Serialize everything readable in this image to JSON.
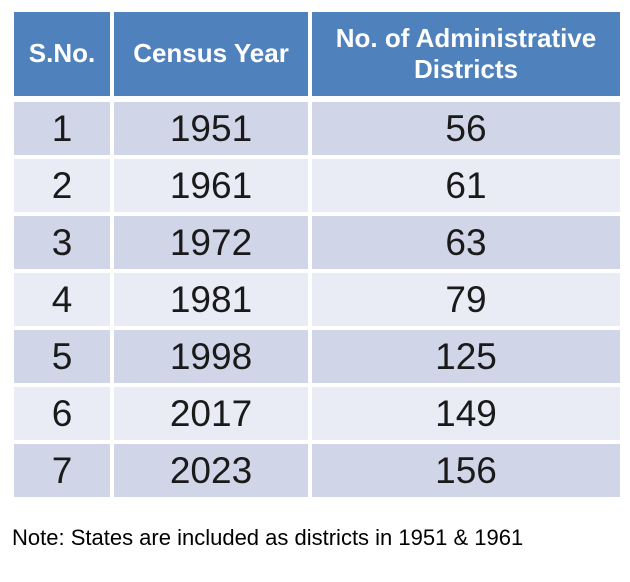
{
  "chart_data": {
    "type": "table",
    "columns": [
      "S.No.",
      "Census Year",
      "No. of Administrative Districts"
    ],
    "rows": [
      [
        "1",
        "1951",
        "56"
      ],
      [
        "2",
        "1961",
        "61"
      ],
      [
        "3",
        "1972",
        "63"
      ],
      [
        "4",
        "1981",
        "79"
      ],
      [
        "5",
        "1998",
        "125"
      ],
      [
        "6",
        "2017",
        "149"
      ],
      [
        "7",
        "2023",
        "156"
      ]
    ],
    "annotation": "Note: States are included as districts in 1951 & 1961"
  },
  "colors": {
    "header_bg": "#4F81BD",
    "header_text": "#FFFFFF",
    "row_band_dark": "#D0D5E8",
    "row_band_light": "#E9EBF5",
    "body_text": "#1A1A1A",
    "gridline": "#FFFFFF"
  }
}
